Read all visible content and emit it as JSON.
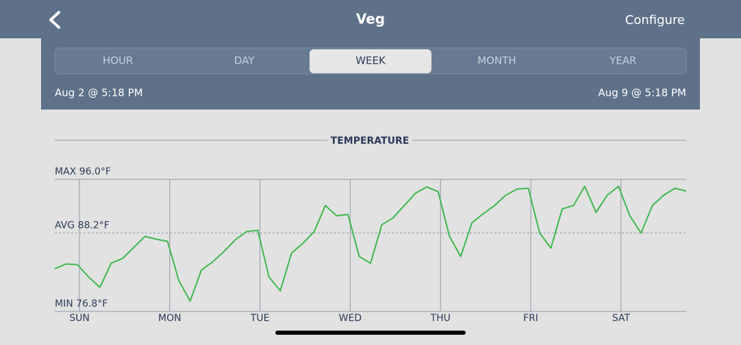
{
  "header": {
    "title": "Veg",
    "action": "Configure"
  },
  "tabs": {
    "items": [
      "HOUR",
      "DAY",
      "WEEK",
      "MONTH",
      "YEAR"
    ],
    "selected": 2
  },
  "range": {
    "start": "Aug 2 @ 5:18 PM",
    "end": "Aug 9 @ 5:18 PM"
  },
  "chart_data": {
    "type": "line",
    "title": "TEMPERATURE",
    "color": "#3cb84a",
    "ylim": [
      76.8,
      96.0
    ],
    "yticks": [
      {
        "value": 96.0,
        "label": "MAX 96.0°F"
      },
      {
        "value": 88.2,
        "label": "AVG 88.2°F"
      },
      {
        "value": 76.8,
        "label": "MIN 76.8°F"
      }
    ],
    "xtick_labels": [
      "SUN",
      "MON",
      "TUE",
      "WED",
      "THU",
      "FRI",
      "SAT"
    ],
    "values": [
      83.0,
      83.7,
      83.6,
      81.8,
      80.3,
      83.8,
      84.5,
      86.1,
      87.7,
      87.3,
      87.0,
      81.3,
      78.3,
      82.8,
      84.0,
      85.5,
      87.2,
      88.4,
      88.6,
      81.8,
      79.8,
      85.3,
      86.7,
      88.4,
      92.2,
      90.7,
      90.9,
      84.8,
      83.8,
      89.4,
      90.4,
      92.2,
      94.0,
      94.9,
      94.2,
      87.7,
      84.8,
      89.7,
      91.0,
      92.2,
      93.7,
      94.6,
      94.7,
      88.2,
      86.0,
      91.7,
      92.2,
      95.0,
      91.2,
      93.7,
      95.0,
      90.7,
      88.2,
      92.2,
      93.7,
      94.7,
      94.3
    ]
  }
}
